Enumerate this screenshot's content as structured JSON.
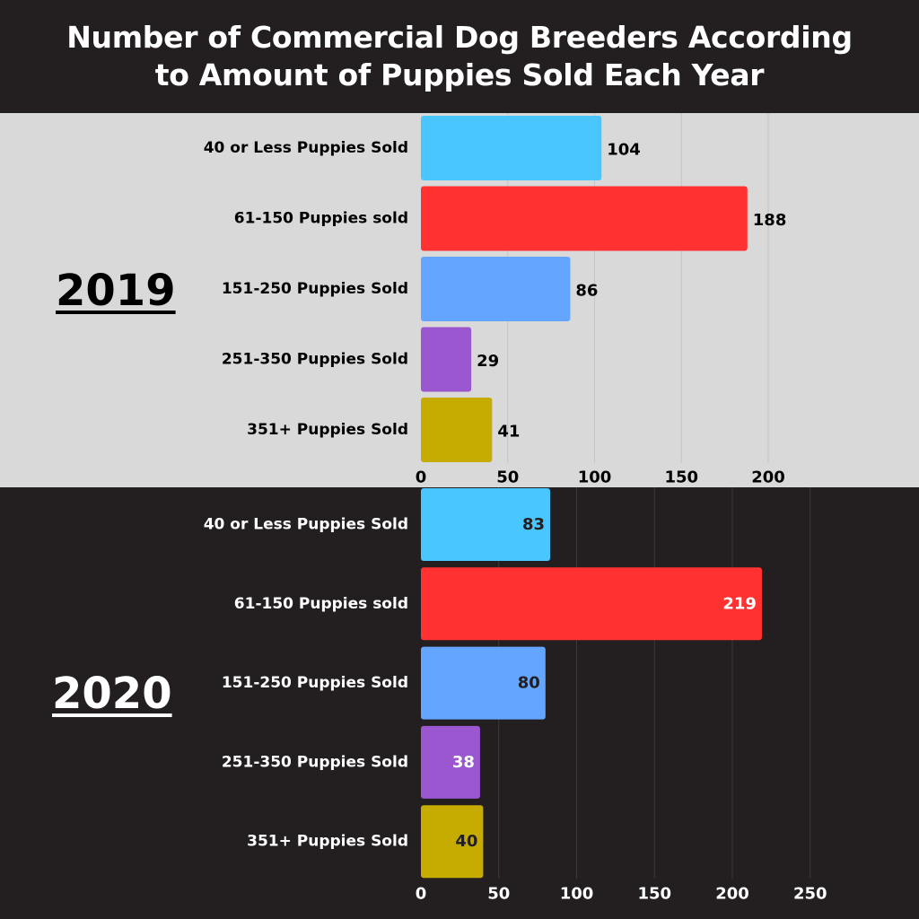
{
  "title": "Number of Commercial Dog Breeders According\nto Amount of Puppies Sold Each Year",
  "colors": {
    "bars": [
      "#4ac6fe",
      "#ff3131",
      "#63a5ff",
      "#9a57d0",
      "#c6ac00"
    ],
    "panel_2019_bg": "#d9d9d9",
    "panel_2020_bg": "#231f20"
  },
  "chart_data": [
    {
      "type": "bar",
      "orientation": "horizontal",
      "title": "2019",
      "categories": [
        "40 or Less Puppies Sold",
        "61-150 Puppies sold",
        "151-250 Puppies Sold",
        "251-350 Puppies Sold",
        "351+ Puppies Sold"
      ],
      "values": [
        104,
        188,
        86,
        29,
        41
      ],
      "xlim": [
        0,
        200
      ],
      "xticks": [
        0,
        50,
        100,
        150,
        200
      ],
      "grid": true,
      "data_labels": "outside"
    },
    {
      "type": "bar",
      "orientation": "horizontal",
      "title": "2020",
      "categories": [
        "40 or Less Puppies Sold",
        "61-150 Puppies sold",
        "151-250 Puppies Sold",
        "251-350 Puppies Sold",
        "351+ Puppies Sold"
      ],
      "values": [
        83,
        219,
        80,
        38,
        40
      ],
      "xlim": [
        0,
        250
      ],
      "xticks": [
        0,
        50,
        100,
        150,
        200,
        250
      ],
      "grid": true,
      "data_labels": "inside"
    }
  ]
}
